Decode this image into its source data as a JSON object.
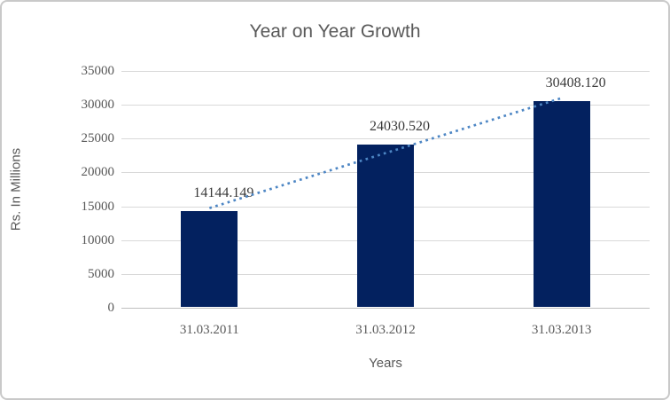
{
  "chart_data": {
    "type": "bar",
    "title": "Year on Year Growth",
    "xlabel": "Years",
    "ylabel": "Rs. In Millions",
    "categories": [
      "31.03.2011",
      "31.03.2012",
      "31.03.2013"
    ],
    "values": [
      14144.149,
      24030.52,
      30408.12
    ],
    "data_labels": [
      "14144.149",
      "24030.520",
      "30408.120"
    ],
    "ylim": [
      0,
      35000
    ],
    "ytick_step": 5000,
    "ytick_labels": [
      "0",
      "5000",
      "10000",
      "15000",
      "20000",
      "25000",
      "30000",
      "35000"
    ],
    "grid": true,
    "legend": false,
    "trendline": {
      "type": "linear",
      "style": "dotted",
      "start_value": 14729,
      "end_value": 30993,
      "color": "#4d86c4"
    },
    "colors": {
      "bar": "#03215f",
      "title_text": "#595959",
      "axis_text": "#595959",
      "data_label_text": "#3a3a3a",
      "gridline": "#d9d9d9",
      "axis_line": "#bfbfbf",
      "frame_border": "#c9c9c9",
      "background": "#ffffff"
    }
  }
}
